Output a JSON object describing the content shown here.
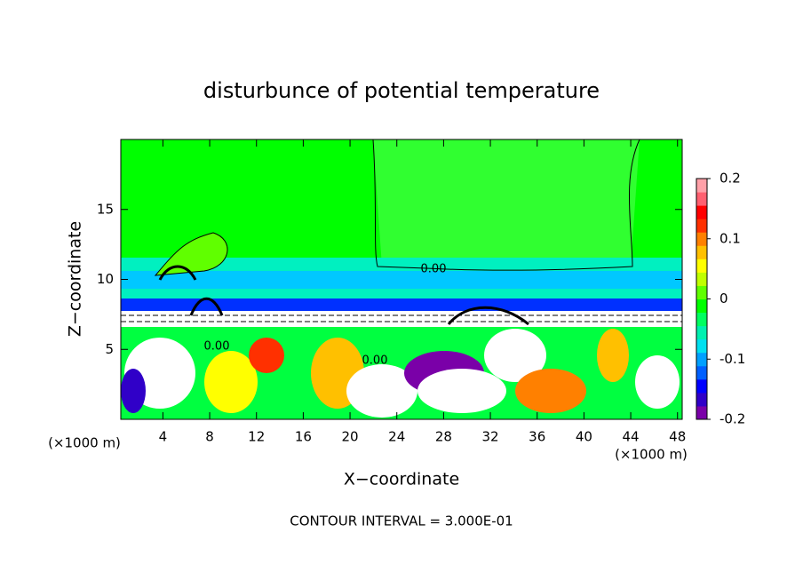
{
  "chart_data": {
    "type": "contour",
    "title": "disturbunce of potential temperature",
    "xlabel": "X−coordinate",
    "ylabel": "Z−coordinate",
    "x_unit": "(×1000 m)",
    "note": "CONTOUR INTERVAL = 3.000E-01",
    "xlim": [
      0.4,
      48.4
    ],
    "xticks": [
      4,
      8,
      12,
      16,
      20,
      24,
      28,
      32,
      36,
      40,
      44,
      48
    ],
    "ylim": [
      0,
      20
    ],
    "yticks": [
      5,
      10,
      15
    ],
    "contour_labels": [
      "0.00",
      "0.00",
      "0.00"
    ],
    "colorbar": {
      "lim": [
        -0.2,
        0.2
      ],
      "ticks": [
        -0.2,
        -0.1,
        0,
        0.1,
        0.2
      ],
      "colors": [
        "#7a00a8",
        "#3000c8",
        "#0000ff",
        "#0060ff",
        "#00a0ff",
        "#00e0f0",
        "#00f0b0",
        "#00ff60",
        "#00ff00",
        "#60ff00",
        "#c0ff00",
        "#ffff00",
        "#ffc000",
        "#ff8000",
        "#ff3000",
        "#ff0000",
        "#ff6070",
        "#ffa0a8"
      ]
    }
  }
}
